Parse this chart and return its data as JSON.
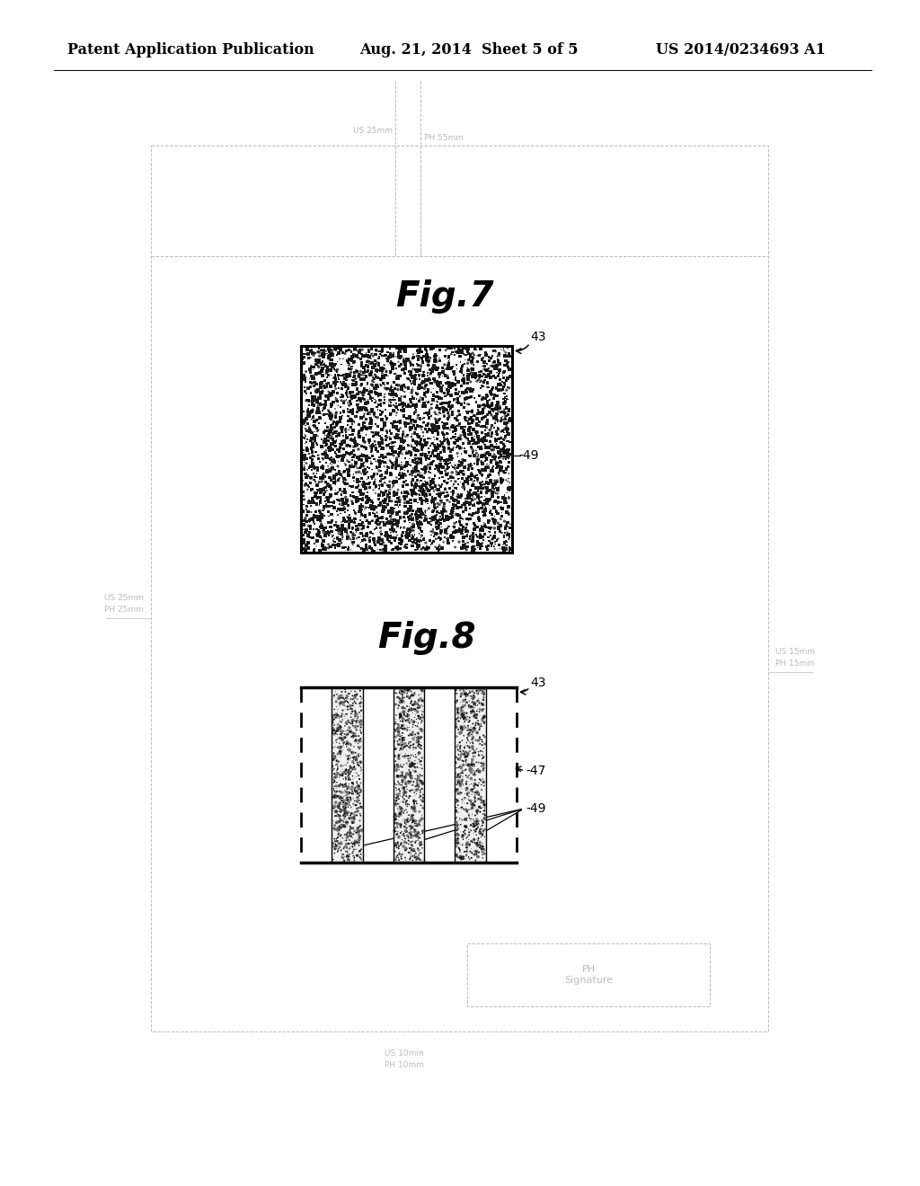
{
  "header_left": "Patent Application Publication",
  "header_center": "Aug. 21, 2014  Sheet 5 of 5",
  "header_right": "US 2014/0234693 A1",
  "fig7_title": "Fig.7",
  "fig8_title": "Fig.8",
  "label_43_fig7": "43",
  "label_49_fig7": "49",
  "label_43_fig8": "43",
  "label_47_fig8": "47",
  "label_49_fig8": "49",
  "margin_label_top_us": "US 25mm",
  "margin_label_top_ph": "PH 55mm",
  "margin_label_left_us": "US 25mm",
  "margin_label_left_ph": "PH 25mm",
  "margin_label_right_us": "US 15mm",
  "margin_label_right_ph": "PH 15mm",
  "margin_label_bottom_us": "US 10min",
  "margin_label_bottom_ph": "PH 10mm",
  "signature_label": "PH\nSignature",
  "bg_color": "#ffffff",
  "margin_label_color": "#bbbbbb",
  "border_dash_color": "#bbbbbb"
}
